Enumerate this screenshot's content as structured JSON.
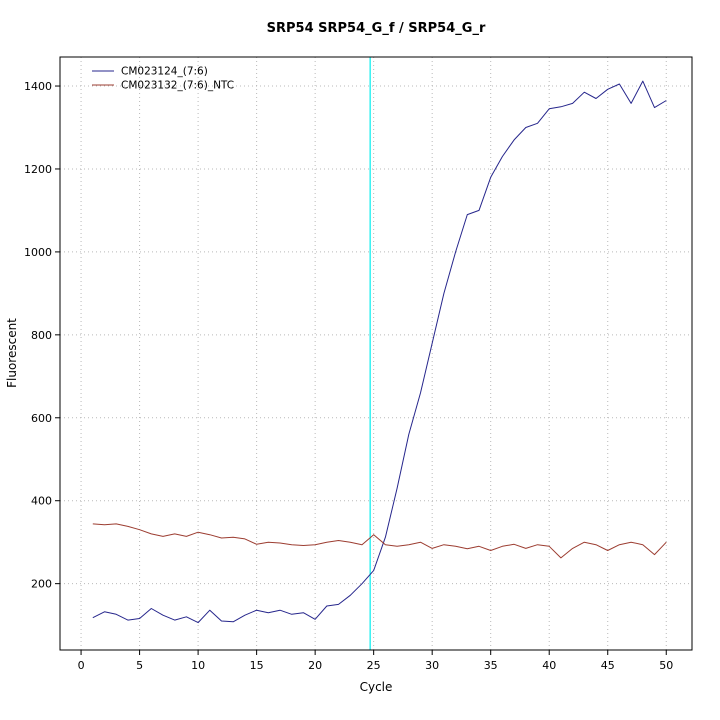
{
  "chart_data": {
    "type": "line",
    "title": "SRP54  SRP54_G_f / SRP54_G_r",
    "xlabel": "Cycle",
    "ylabel": "Fluorescent",
    "xlim": [
      -1.8,
      52.2
    ],
    "ylim": [
      40,
      1470
    ],
    "xticks": [
      0,
      5,
      10,
      15,
      20,
      25,
      30,
      35,
      40,
      45,
      50
    ],
    "yticks": [
      200,
      400,
      600,
      800,
      1000,
      1200,
      1400
    ],
    "grid": "dotted",
    "grid_color": "#b9b9b9",
    "threshold_x": 24.7,
    "threshold_color": "#00eeee",
    "legend_position": "top-left",
    "x": [
      1,
      2,
      3,
      4,
      5,
      6,
      7,
      8,
      9,
      10,
      11,
      12,
      13,
      14,
      15,
      16,
      17,
      18,
      19,
      20,
      21,
      22,
      23,
      24,
      25,
      26,
      27,
      28,
      29,
      30,
      31,
      32,
      33,
      34,
      35,
      36,
      37,
      38,
      39,
      40,
      41,
      42,
      43,
      44,
      45,
      46,
      47,
      48,
      49,
      50
    ],
    "series": [
      {
        "name": "CM023124_(7:6)",
        "color": "#26268c",
        "values": [
          118,
          132,
          126,
          112,
          116,
          140,
          124,
          112,
          120,
          106,
          136,
          110,
          108,
          124,
          136,
          130,
          136,
          126,
          130,
          114,
          146,
          150,
          172,
          200,
          232,
          312,
          430,
          560,
          660,
          780,
          900,
          1000,
          1090,
          1100,
          1180,
          1230,
          1270,
          1300,
          1310,
          1345,
          1350,
          1358,
          1385,
          1370,
          1392,
          1405,
          1358,
          1412,
          1348,
          1365
        ]
      },
      {
        "name": "CM023132_(7:6)_NTC",
        "color": "#9c3d31",
        "values": [
          344,
          342,
          344,
          338,
          330,
          320,
          314,
          320,
          314,
          324,
          318,
          310,
          312,
          308,
          295,
          300,
          298,
          294,
          292,
          294,
          300,
          304,
          300,
          294,
          318,
          294,
          290,
          294,
          300,
          285,
          294,
          290,
          284,
          290,
          280,
          290,
          295,
          285,
          294,
          290,
          262,
          285,
          300,
          294,
          280,
          294,
          300,
          294,
          270,
          300
        ]
      }
    ]
  }
}
